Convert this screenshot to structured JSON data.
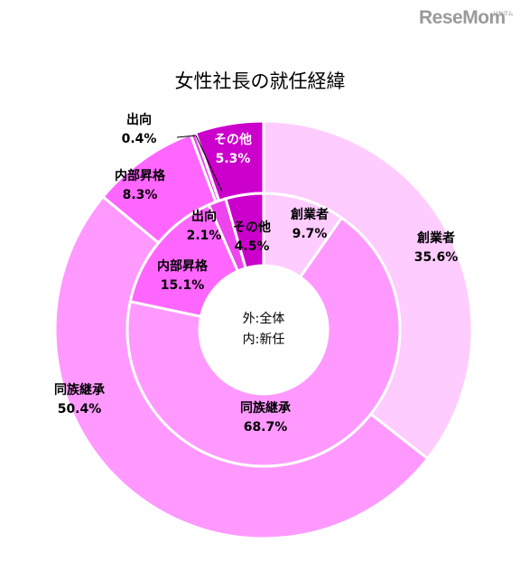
{
  "brand": {
    "name": "ReseMom",
    "tagline": "リセマム"
  },
  "chart_data": {
    "type": "pie",
    "title": "女性社長の就任経緯",
    "center_labels": [
      "外:全体",
      "内:新任"
    ],
    "series": [
      {
        "name": "外:全体",
        "ring": "outer",
        "slices": [
          {
            "label": "創業者",
            "value": 35.6,
            "value_text": "35.6%",
            "color": "#ffccff"
          },
          {
            "label": "同族継承",
            "value": 50.4,
            "value_text": "50.4%",
            "color": "#ff99ff"
          },
          {
            "label": "内部昇格",
            "value": 8.3,
            "value_text": "8.3%",
            "color": "#ff66ff"
          },
          {
            "label": "出向",
            "value": 0.4,
            "value_text": "0.4%",
            "color": "#ee44ee"
          },
          {
            "label": "その他",
            "value": 5.3,
            "value_text": "5.3%",
            "color": "#cc00cc"
          }
        ]
      },
      {
        "name": "内:新任",
        "ring": "inner",
        "slices": [
          {
            "label": "創業者",
            "value": 9.7,
            "value_text": "9.7%",
            "color": "#ffccff"
          },
          {
            "label": "同族継承",
            "value": 68.7,
            "value_text": "68.7%",
            "color": "#ff99ff"
          },
          {
            "label": "内部昇格",
            "value": 15.1,
            "value_text": "15.1%",
            "color": "#ff66ff"
          },
          {
            "label": "出向",
            "value": 2.1,
            "value_text": "2.1%",
            "color": "#ee44ee"
          },
          {
            "label": "その他",
            "value": 4.5,
            "value_text": "4.5%",
            "color": "#cc00cc"
          }
        ]
      }
    ]
  }
}
